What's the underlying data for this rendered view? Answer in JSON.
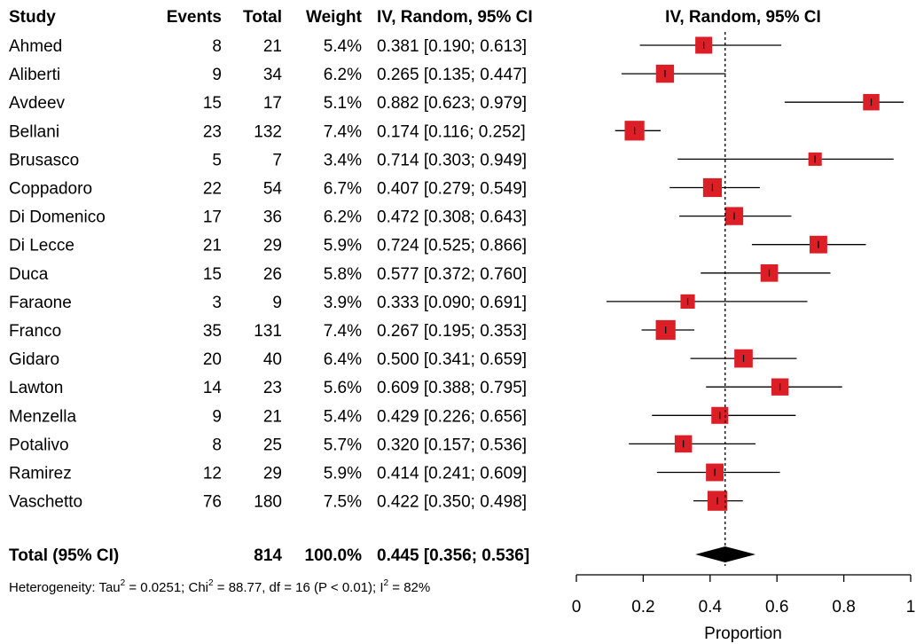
{
  "chart_data": {
    "type": "forest",
    "headers": {
      "study": "Study",
      "events": "Events",
      "total": "Total",
      "weight": "Weight",
      "ci": "IV, Random, 95% CI",
      "plot_title": "IV, Random, 95% CI"
    },
    "studies": [
      {
        "name": "Ahmed",
        "events": "8",
        "total": "21",
        "weight": "5.4%",
        "ci_text": "0.381 [0.190; 0.613]",
        "est": 0.381,
        "lo": 0.19,
        "hi": 0.613,
        "w": 5.4
      },
      {
        "name": "Aliberti",
        "events": "9",
        "total": "34",
        "weight": "6.2%",
        "ci_text": "0.265 [0.135; 0.447]",
        "est": 0.265,
        "lo": 0.135,
        "hi": 0.447,
        "w": 6.2
      },
      {
        "name": "Avdeev",
        "events": "15",
        "total": "17",
        "weight": "5.1%",
        "ci_text": "0.882 [0.623; 0.979]",
        "est": 0.882,
        "lo": 0.623,
        "hi": 0.979,
        "w": 5.1
      },
      {
        "name": "Bellani",
        "events": "23",
        "total": "132",
        "weight": "7.4%",
        "ci_text": "0.174 [0.116; 0.252]",
        "est": 0.174,
        "lo": 0.116,
        "hi": 0.252,
        "w": 7.4
      },
      {
        "name": "Brusasco",
        "events": "5",
        "total": "7",
        "weight": "3.4%",
        "ci_text": "0.714 [0.303; 0.949]",
        "est": 0.714,
        "lo": 0.303,
        "hi": 0.949,
        "w": 3.4
      },
      {
        "name": "Coppadoro",
        "events": "22",
        "total": "54",
        "weight": "6.7%",
        "ci_text": "0.407 [0.279; 0.549]",
        "est": 0.407,
        "lo": 0.279,
        "hi": 0.549,
        "w": 6.7
      },
      {
        "name": "Di Domenico",
        "events": "17",
        "total": "36",
        "weight": "6.2%",
        "ci_text": "0.472 [0.308; 0.643]",
        "est": 0.472,
        "lo": 0.308,
        "hi": 0.643,
        "w": 6.2
      },
      {
        "name": "Di Lecce",
        "events": "21",
        "total": "29",
        "weight": "5.9%",
        "ci_text": "0.724 [0.525; 0.866]",
        "est": 0.724,
        "lo": 0.525,
        "hi": 0.866,
        "w": 5.9
      },
      {
        "name": "Duca",
        "events": "15",
        "total": "26",
        "weight": "5.8%",
        "ci_text": "0.577 [0.372; 0.760]",
        "est": 0.577,
        "lo": 0.372,
        "hi": 0.76,
        "w": 5.8
      },
      {
        "name": "Faraone",
        "events": "3",
        "total": "9",
        "weight": "3.9%",
        "ci_text": "0.333 [0.090; 0.691]",
        "est": 0.333,
        "lo": 0.09,
        "hi": 0.691,
        "w": 3.9
      },
      {
        "name": "Franco",
        "events": "35",
        "total": "131",
        "weight": "7.4%",
        "ci_text": "0.267 [0.195; 0.353]",
        "est": 0.267,
        "lo": 0.195,
        "hi": 0.353,
        "w": 7.4
      },
      {
        "name": "Gidaro",
        "events": "20",
        "total": "40",
        "weight": "6.4%",
        "ci_text": "0.500 [0.341; 0.659]",
        "est": 0.5,
        "lo": 0.341,
        "hi": 0.659,
        "w": 6.4
      },
      {
        "name": "Lawton",
        "events": "14",
        "total": "23",
        "weight": "5.6%",
        "ci_text": "0.609 [0.388; 0.795]",
        "est": 0.609,
        "lo": 0.388,
        "hi": 0.795,
        "w": 5.6
      },
      {
        "name": "Menzella",
        "events": "9",
        "total": "21",
        "weight": "5.4%",
        "ci_text": "0.429 [0.226; 0.656]",
        "est": 0.429,
        "lo": 0.226,
        "hi": 0.656,
        "w": 5.4
      },
      {
        "name": "Potalivo",
        "events": "8",
        "total": "25",
        "weight": "5.7%",
        "ci_text": "0.320 [0.157; 0.536]",
        "est": 0.32,
        "lo": 0.157,
        "hi": 0.536,
        "w": 5.7
      },
      {
        "name": "Ramirez",
        "events": "12",
        "total": "29",
        "weight": "5.9%",
        "ci_text": "0.414 [0.241; 0.609]",
        "est": 0.414,
        "lo": 0.241,
        "hi": 0.609,
        "w": 5.9
      },
      {
        "name": "Vaschetto",
        "events": "76",
        "total": "180",
        "weight": "7.5%",
        "ci_text": "0.422 [0.350; 0.498]",
        "est": 0.422,
        "lo": 0.35,
        "hi": 0.498,
        "w": 7.5
      }
    ],
    "total": {
      "label": "Total (95% CI)",
      "total": "814",
      "weight": "100.0%",
      "ci_text": "0.445 [0.356; 0.536]",
      "est": 0.445,
      "lo": 0.356,
      "hi": 0.536
    },
    "heterogeneity": {
      "prefix": "Heterogeneity: Tau",
      "tau_sup": "2",
      "tau_val": " = 0.0251; Chi",
      "chi_sup": "2",
      "chi_val": " = 88.77, df = 16 (P < 0.01); I",
      "i_sup": "2",
      "i_val": " = 82%"
    },
    "x_axis": {
      "label": "Proportion",
      "range": [
        0,
        1
      ],
      "ticks": [
        0,
        0.2,
        0.4,
        0.6,
        0.8,
        1
      ],
      "tick_labels": [
        "0",
        "0.2",
        "0.4",
        "0.6",
        "0.8",
        "1"
      ]
    },
    "reference_line": 0.445,
    "colors": {
      "box_fill": "#dc1f26",
      "line": "#000000",
      "diamond": "#000000",
      "reference": "#000000"
    }
  }
}
